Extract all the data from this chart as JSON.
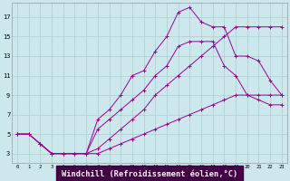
{
  "bg_color": "#cce8ec",
  "line_color": "#990099",
  "grid_color": "#aacccc",
  "xlabel": "Windchill (Refroidissement éolien,°C)",
  "ylabel_ticks": [
    3,
    5,
    7,
    9,
    11,
    13,
    15,
    17
  ],
  "xticks": [
    0,
    1,
    2,
    3,
    4,
    5,
    6,
    7,
    8,
    9,
    10,
    11,
    12,
    13,
    14,
    15,
    16,
    17,
    18,
    19,
    20,
    21,
    22,
    23
  ],
  "xlim": [
    -0.5,
    23.5
  ],
  "ylim": [
    2.0,
    18.5
  ],
  "line1_x": [
    0,
    1,
    2,
    3,
    4,
    5,
    6,
    7,
    8,
    9,
    10,
    11,
    12,
    13,
    14,
    15,
    16,
    17,
    18,
    19,
    20,
    21,
    22,
    23
  ],
  "line1_y": [
    5,
    5,
    4,
    3,
    3,
    3,
    3,
    3.5,
    4.5,
    5.5,
    6.5,
    7.5,
    9,
    10,
    11,
    12,
    13,
    14,
    15,
    16,
    16,
    16,
    16,
    16
  ],
  "line2_x": [
    0,
    1,
    2,
    3,
    4,
    5,
    6,
    7,
    8,
    9,
    10,
    11,
    12,
    13,
    14,
    15,
    16,
    17,
    18,
    19,
    20,
    21,
    22,
    23
  ],
  "line2_y": [
    5,
    5,
    4,
    3,
    3,
    3,
    3,
    5.5,
    6.5,
    7.5,
    8.5,
    9.5,
    11,
    12,
    14,
    14.5,
    14.5,
    14.5,
    12,
    11,
    9,
    9,
    9,
    9
  ],
  "line3_x": [
    2,
    3,
    4,
    5,
    6,
    7,
    8,
    9,
    10,
    11,
    12,
    13,
    14,
    15,
    16,
    17,
    18,
    19,
    20,
    21,
    22,
    23
  ],
  "line3_y": [
    4,
    3,
    3,
    3,
    3,
    6.5,
    7.5,
    9,
    11,
    11.5,
    13.5,
    15,
    17.5,
    18,
    16.5,
    16,
    16,
    13,
    13,
    12.5,
    10.5,
    9
  ],
  "line4_x": [
    0,
    1,
    2,
    3,
    4,
    5,
    6,
    7,
    8,
    9,
    10,
    11,
    12,
    13,
    14,
    15,
    16,
    17,
    18,
    19,
    20,
    21,
    22,
    23
  ],
  "line4_y": [
    5,
    5,
    4,
    3,
    3,
    3,
    3,
    3,
    3.5,
    4,
    4.5,
    5,
    5.5,
    6,
    6.5,
    7,
    7.5,
    8,
    8.5,
    9,
    9,
    8.5,
    8,
    8
  ]
}
